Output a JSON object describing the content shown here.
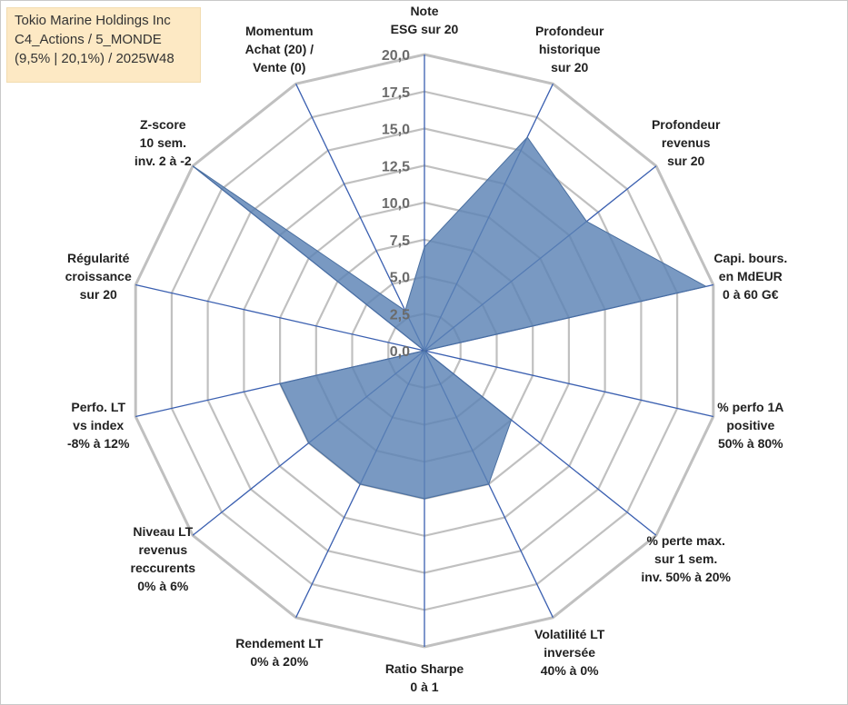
{
  "info": {
    "company": "Tokio Marine Holdings Inc",
    "category": "C4_Actions / 5_MONDE",
    "stats": "(9,5% | 20,1%) / 2025W48"
  },
  "colors": {
    "fill": "#5b82b4",
    "axis": "#3a5fb0",
    "grid": "#c0c0c0"
  },
  "chart_data": {
    "type": "radar",
    "scale_max": 20,
    "ticks": [
      "0,0",
      "2,5",
      "5,0",
      "7,5",
      "10,0",
      "12,5",
      "15,0",
      "17,5",
      "20,0"
    ],
    "axes": [
      {
        "lines": [
          "Note",
          "ESG sur 20"
        ],
        "value": 7
      },
      {
        "lines": [
          "Profondeur",
          "historique",
          "sur 20"
        ],
        "value": 16
      },
      {
        "lines": [
          "Profondeur",
          "revenus",
          "sur 20"
        ],
        "value": 14
      },
      {
        "lines": [
          "Capi. bours.",
          "en MdEUR",
          "0 à 60 G€"
        ],
        "value": 19.5
      },
      {
        "lines": [
          "% perfo 1A",
          "positive",
          "50% à 80%"
        ],
        "value": 0
      },
      {
        "lines": [
          "% perte max.",
          "sur 1 sem.",
          "inv. 50% à 20%"
        ],
        "value": 7.5
      },
      {
        "lines": [
          "Volatilité LT",
          "inversée",
          "40% à 0%"
        ],
        "value": 10
      },
      {
        "lines": [
          "Ratio Sharpe",
          "0 à 1"
        ],
        "value": 10
      },
      {
        "lines": [
          "Rendement LT",
          "0% à 20%"
        ],
        "value": 10
      },
      {
        "lines": [
          "Niveau LT",
          "revenus",
          "reccurents",
          "0% à 6%"
        ],
        "value": 10
      },
      {
        "lines": [
          "Perfo. LT",
          "vs index",
          "-8% à 12%"
        ],
        "value": 10
      },
      {
        "lines": [
          "Régularité",
          "croissance",
          "sur 20"
        ],
        "value": 0
      },
      {
        "lines": [
          "Z-score",
          "10 sem.",
          "inv. 2 à -2"
        ],
        "value": 20
      },
      {
        "lines": [
          "Momentum",
          "Achat (20) /",
          "Vente (0)"
        ],
        "value": 3
      }
    ]
  }
}
